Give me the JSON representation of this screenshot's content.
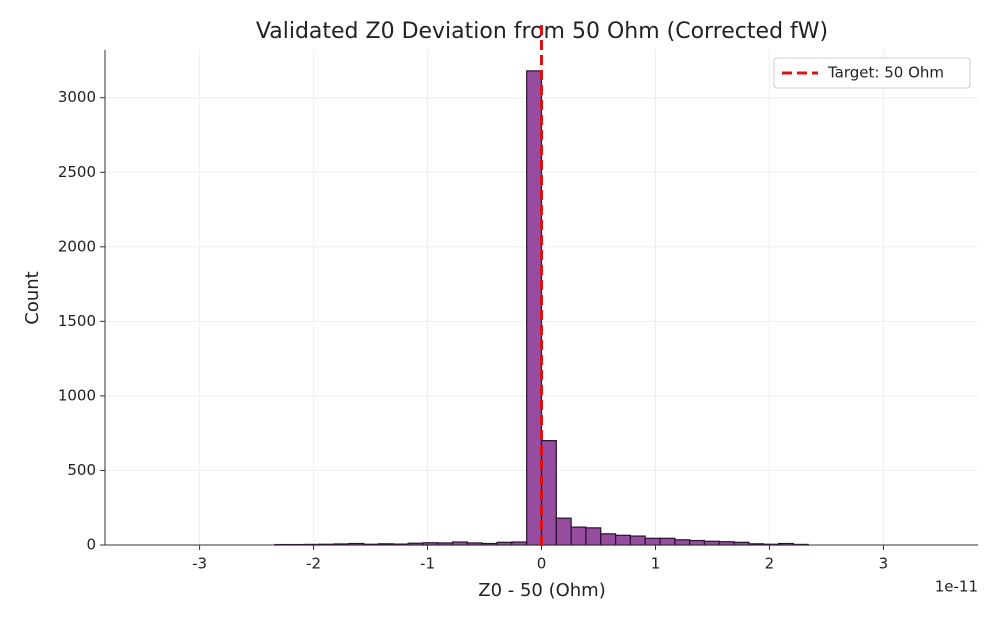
{
  "chart_data": {
    "type": "histogram",
    "title": "Validated Z0 Deviation from 50 Ohm (Corrected fW)",
    "xlabel": "Z0 - 50 (Ohm)",
    "ylabel": "Count",
    "x_offset_label": "1e-11",
    "bins": [
      -2.34,
      -2.21,
      -2.08,
      -1.95,
      -1.82,
      -1.69,
      -1.56,
      -1.43,
      -1.3,
      -1.17,
      -1.04,
      -0.91,
      -0.78,
      -0.65,
      -0.52,
      -0.39,
      -0.26,
      -0.13,
      0,
      0.13,
      0.26,
      0.39,
      0.52,
      0.65,
      0.78,
      0.91,
      1.04,
      1.17,
      1.3,
      1.43,
      1.56,
      1.69,
      1.82,
      1.95,
      2.08,
      2.21,
      2.34
    ],
    "values": [
      3,
      3,
      4,
      5,
      7,
      10,
      5,
      8,
      6,
      12,
      15,
      14,
      20,
      14,
      10,
      18,
      20,
      3180,
      700,
      180,
      120,
      115,
      75,
      65,
      60,
      45,
      45,
      35,
      30,
      25,
      22,
      18,
      8,
      5,
      10,
      4
    ],
    "color": "#8b3a96",
    "edgecolor": "#2a1030",
    "xlim": [
      -3.83,
      3.83
    ],
    "ylim": [
      0,
      3320
    ],
    "xticks": [
      -3,
      -2,
      -1,
      0,
      1,
      2,
      3
    ],
    "yticks": [
      0,
      500,
      1000,
      1500,
      2000,
      2500,
      3000
    ],
    "grid": true,
    "vline": {
      "x": 0,
      "label": "Target: 50 Ohm",
      "color": "#dd1111"
    },
    "legend": "upper right"
  }
}
